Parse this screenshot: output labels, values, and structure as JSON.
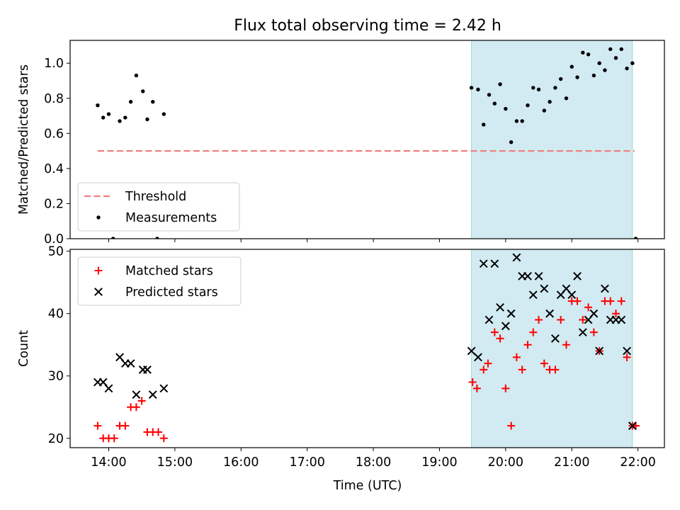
{
  "title": "Flux total observing time = 2.42 h",
  "xlabel": "Time (UTC)",
  "colors": {
    "threshold": "#f08080",
    "measurements": "#000000",
    "matched": "#ff0000",
    "predicted": "#000000",
    "shade": "#add8e6"
  },
  "chart_data": [
    {
      "type": "scatter",
      "ylabel": "Matched/Predicted stars",
      "xlim": [
        "13:25",
        "22:24"
      ],
      "ylim": [
        0,
        1.13
      ],
      "yticks": [
        0.0,
        0.2,
        0.4,
        0.6,
        0.8,
        1.0
      ],
      "ytick_labels": [
        "0.0",
        "0.2",
        "0.4",
        "0.6",
        "0.8",
        "1.0"
      ],
      "xticks": [
        "14:00",
        "15:00",
        "16:00",
        "17:00",
        "18:00",
        "19:00",
        "20:00",
        "21:00",
        "22:00"
      ],
      "xtick_labels_shown": false,
      "shaded_span": [
        "19:29",
        "21:55"
      ],
      "legend_position": "lower-left",
      "legend": [
        "Threshold",
        "Measurements"
      ],
      "threshold": {
        "name": "Threshold",
        "y": 0.5,
        "x": [
          "13:50",
          "21:57"
        ],
        "style": "dashed"
      },
      "series": [
        {
          "name": "Measurements",
          "marker": "dot",
          "points": [
            [
              "13:50",
              0.76
            ],
            [
              "13:55",
              0.69
            ],
            [
              "14:00",
              0.71
            ],
            [
              "14:04",
              0.0
            ],
            [
              "14:10",
              0.67
            ],
            [
              "14:15",
              0.69
            ],
            [
              "14:20",
              0.78
            ],
            [
              "14:25",
              0.93
            ],
            [
              "14:31",
              0.84
            ],
            [
              "14:35",
              0.68
            ],
            [
              "14:40",
              0.78
            ],
            [
              "14:44",
              0.0
            ],
            [
              "14:50",
              0.71
            ],
            [
              "19:29",
              0.86
            ],
            [
              "19:35",
              0.85
            ],
            [
              "19:40",
              0.65
            ],
            [
              "19:45",
              0.82
            ],
            [
              "19:50",
              0.77
            ],
            [
              "19:55",
              0.88
            ],
            [
              "20:00",
              0.74
            ],
            [
              "20:05",
              0.55
            ],
            [
              "20:10",
              0.67
            ],
            [
              "20:15",
              0.67
            ],
            [
              "20:20",
              0.76
            ],
            [
              "20:25",
              0.86
            ],
            [
              "20:30",
              0.85
            ],
            [
              "20:35",
              0.73
            ],
            [
              "20:40",
              0.78
            ],
            [
              "20:45",
              0.86
            ],
            [
              "20:50",
              0.91
            ],
            [
              "20:55",
              0.8
            ],
            [
              "21:00",
              0.98
            ],
            [
              "21:05",
              0.92
            ],
            [
              "21:10",
              1.06
            ],
            [
              "21:15",
              1.05
            ],
            [
              "21:20",
              0.93
            ],
            [
              "21:25",
              1.0
            ],
            [
              "21:30",
              0.96
            ],
            [
              "21:35",
              1.08
            ],
            [
              "21:40",
              1.03
            ],
            [
              "21:45",
              1.08
            ],
            [
              "21:50",
              0.97
            ],
            [
              "21:55",
              1.0
            ],
            [
              "21:58",
              0.0
            ]
          ]
        }
      ]
    },
    {
      "type": "scatter",
      "ylabel": "Count",
      "xlim": [
        "13:25",
        "22:24"
      ],
      "ylim": [
        18.5,
        50.3
      ],
      "yticks": [
        20,
        30,
        40,
        50
      ],
      "ytick_labels": [
        "20",
        "30",
        "40",
        "50"
      ],
      "xticks": [
        "14:00",
        "15:00",
        "16:00",
        "17:00",
        "18:00",
        "19:00",
        "20:00",
        "21:00",
        "22:00"
      ],
      "xtick_labels": [
        "14:00",
        "15:00",
        "16:00",
        "17:00",
        "18:00",
        "19:00",
        "20:00",
        "21:00",
        "22:00"
      ],
      "shaded_span": [
        "19:29",
        "21:55"
      ],
      "legend_position": "upper-left",
      "legend": [
        "Matched stars",
        "Predicted stars"
      ],
      "series": [
        {
          "name": "Matched stars",
          "marker": "plus",
          "points": [
            [
              "13:50",
              22
            ],
            [
              "13:55",
              20
            ],
            [
              "14:00",
              20
            ],
            [
              "14:05",
              20
            ],
            [
              "14:10",
              22
            ],
            [
              "14:15",
              22
            ],
            [
              "14:20",
              25
            ],
            [
              "14:25",
              25
            ],
            [
              "14:30",
              26
            ],
            [
              "14:35",
              21
            ],
            [
              "14:40",
              21
            ],
            [
              "14:45",
              21
            ],
            [
              "14:50",
              20
            ],
            [
              "19:30",
              29
            ],
            [
              "19:34",
              28
            ],
            [
              "19:40",
              31
            ],
            [
              "19:44",
              32
            ],
            [
              "19:50",
              37
            ],
            [
              "19:55",
              36
            ],
            [
              "20:00",
              28
            ],
            [
              "20:05",
              22
            ],
            [
              "20:10",
              33
            ],
            [
              "20:15",
              31
            ],
            [
              "20:20",
              35
            ],
            [
              "20:25",
              37
            ],
            [
              "20:30",
              39
            ],
            [
              "20:35",
              32
            ],
            [
              "20:40",
              31
            ],
            [
              "20:45",
              31
            ],
            [
              "20:50",
              39
            ],
            [
              "20:55",
              35
            ],
            [
              "21:00",
              42
            ],
            [
              "21:05",
              42
            ],
            [
              "21:10",
              39
            ],
            [
              "21:15",
              41
            ],
            [
              "21:20",
              37
            ],
            [
              "21:25",
              34
            ],
            [
              "21:30",
              42
            ],
            [
              "21:35",
              42
            ],
            [
              "21:40",
              40
            ],
            [
              "21:45",
              42
            ],
            [
              "21:50",
              33
            ],
            [
              "21:55",
              22
            ],
            [
              "21:58",
              22
            ]
          ]
        },
        {
          "name": "Predicted stars",
          "marker": "x",
          "points": [
            [
              "13:50",
              29
            ],
            [
              "13:55",
              29
            ],
            [
              "14:00",
              28
            ],
            [
              "14:10",
              33
            ],
            [
              "14:15",
              32
            ],
            [
              "14:20",
              32
            ],
            [
              "14:25",
              27
            ],
            [
              "14:31",
              31
            ],
            [
              "14:35",
              31
            ],
            [
              "14:40",
              27
            ],
            [
              "14:50",
              28
            ],
            [
              "19:29",
              34
            ],
            [
              "19:35",
              33
            ],
            [
              "19:40",
              48
            ],
            [
              "19:45",
              39
            ],
            [
              "19:50",
              48
            ],
            [
              "19:55",
              41
            ],
            [
              "20:00",
              38
            ],
            [
              "20:05",
              40
            ],
            [
              "20:10",
              49
            ],
            [
              "20:15",
              46
            ],
            [
              "20:20",
              46
            ],
            [
              "20:25",
              43
            ],
            [
              "20:30",
              46
            ],
            [
              "20:35",
              44
            ],
            [
              "20:40",
              40
            ],
            [
              "20:45",
              36
            ],
            [
              "20:50",
              43
            ],
            [
              "20:55",
              44
            ],
            [
              "21:00",
              43
            ],
            [
              "21:05",
              46
            ],
            [
              "21:10",
              37
            ],
            [
              "21:15",
              39
            ],
            [
              "21:20",
              40
            ],
            [
              "21:25",
              34
            ],
            [
              "21:30",
              44
            ],
            [
              "21:35",
              39
            ],
            [
              "21:40",
              39
            ],
            [
              "21:45",
              39
            ],
            [
              "21:50",
              34
            ],
            [
              "21:55",
              22
            ]
          ]
        }
      ]
    }
  ]
}
